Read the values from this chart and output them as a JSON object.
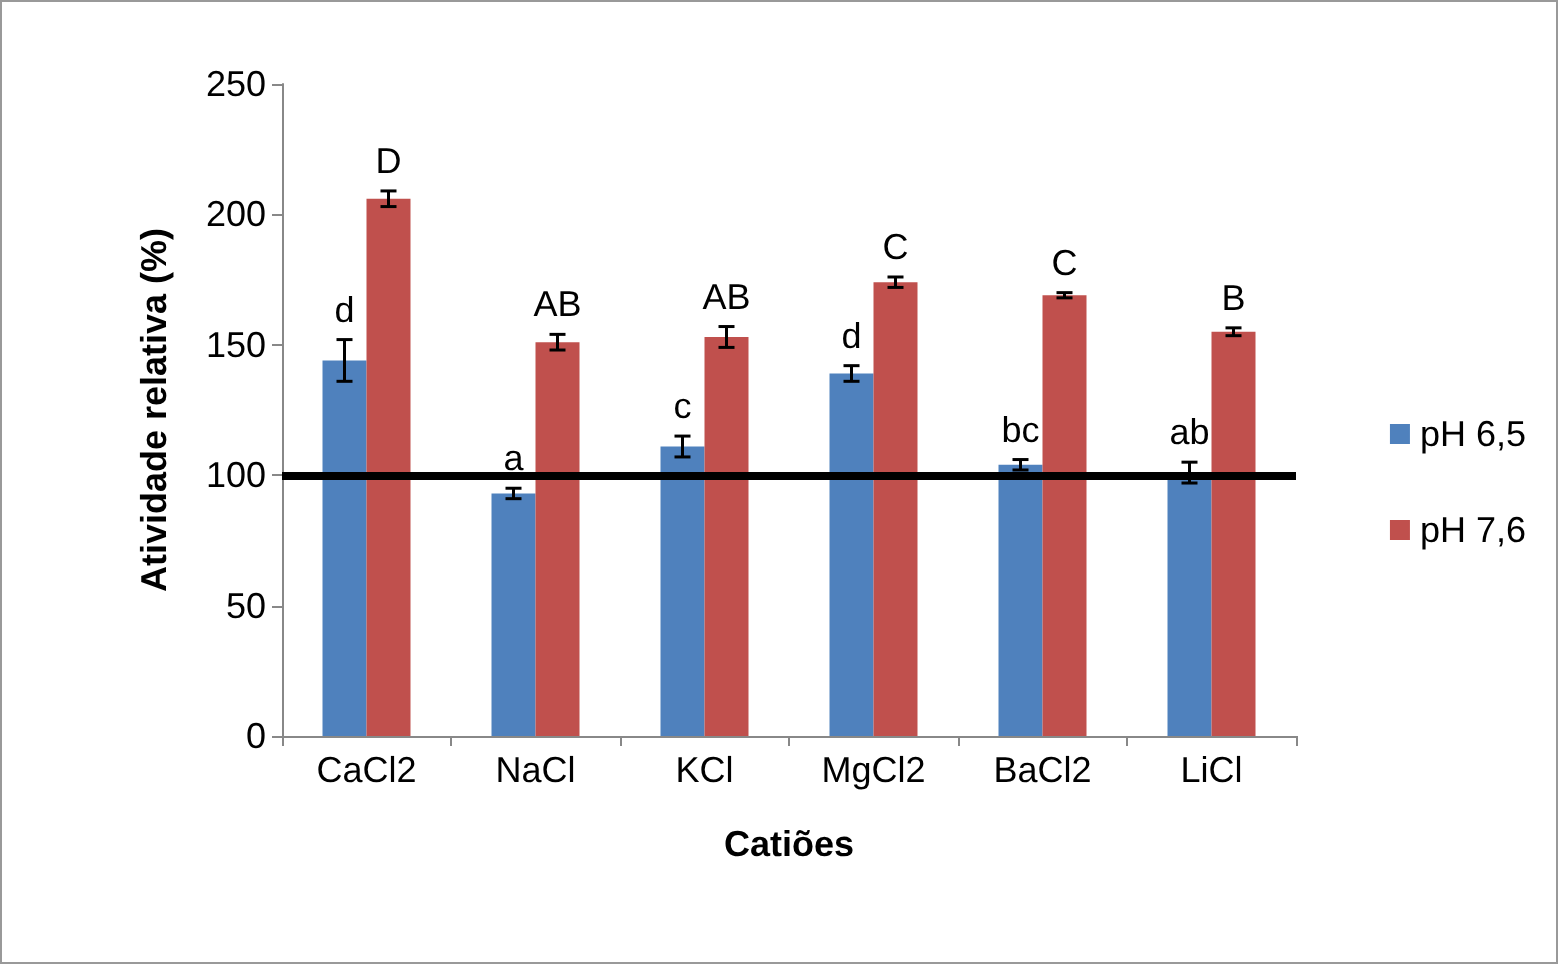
{
  "chart_data": {
    "type": "bar",
    "xlabel": "Catiões",
    "ylabel": "Atividade relativa (%)",
    "categories": [
      "CaCl2",
      "NaCl",
      "KCl",
      "MgCl2",
      "BaCl2",
      "LiCl"
    ],
    "series": [
      {
        "name": "pH 6,5",
        "color": "#4f81bd",
        "values": [
          144,
          93,
          111,
          139,
          104,
          101
        ],
        "errors": [
          8,
          2,
          4,
          3,
          2,
          4
        ],
        "value_labels": [
          "d",
          "a",
          "c",
          "d",
          "bc",
          "ab"
        ]
      },
      {
        "name": "pH 7,6",
        "color": "#c0504d",
        "values": [
          206,
          151,
          153,
          174,
          169,
          155
        ],
        "errors": [
          3,
          3,
          4,
          2,
          1,
          1.5
        ],
        "value_labels": [
          "D",
          "AB",
          "AB",
          "C",
          "C",
          "B"
        ]
      }
    ],
    "ylim": [
      0,
      250
    ],
    "yticks": [
      0,
      50,
      100,
      150,
      200,
      250
    ],
    "grid": false,
    "legend": "right",
    "ref_lines": [
      {
        "axis": "y",
        "value": 100,
        "color": "#000000"
      }
    ]
  }
}
